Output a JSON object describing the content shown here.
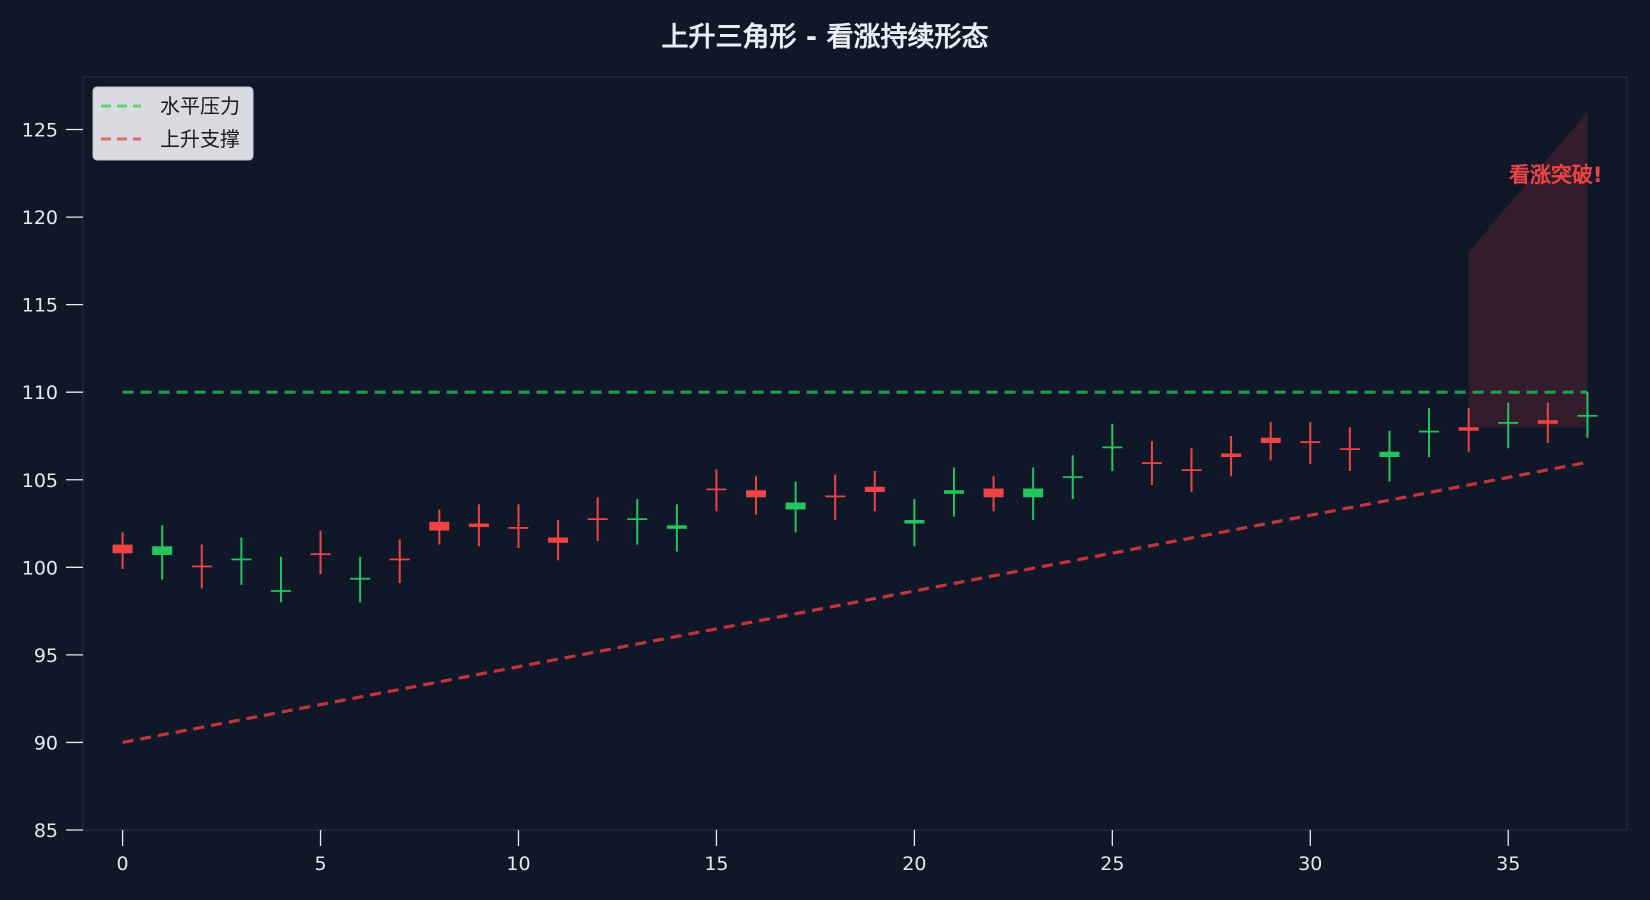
{
  "chart_data": {
    "type": "candlestick",
    "title": "上升三角形 - 看涨持续形态",
    "xlabel": "",
    "ylabel": "",
    "xlim": [
      -1,
      38
    ],
    "ylim": [
      85,
      128
    ],
    "x_ticks": [
      0,
      5,
      10,
      15,
      20,
      25,
      30,
      35
    ],
    "y_ticks": [
      85,
      90,
      95,
      100,
      105,
      110,
      115,
      120,
      125
    ],
    "grid": false,
    "legend": {
      "placement": "top-left",
      "entries": [
        {
          "label": "水平压力",
          "color": "#5fd47e"
        },
        {
          "label": "上升支撑",
          "color": "#e06a6a"
        }
      ]
    },
    "colors": {
      "background": "#0f1729",
      "up": "#22c55e",
      "down": "#ef4444",
      "resistance": "#1f9e4f",
      "support": "#c0343c",
      "breakout_zone": "#3a1e2e"
    },
    "resistance_line": {
      "name": "水平压力",
      "x": [
        0,
        37
      ],
      "y": [
        110,
        110
      ]
    },
    "support_line": {
      "name": "上升支撑",
      "x": [
        0,
        37
      ],
      "y": [
        90,
        106
      ]
    },
    "breakout_zone": {
      "x": [
        34,
        37
      ],
      "lower": [
        108,
        108
      ],
      "upper": [
        118,
        126
      ]
    },
    "annotation": {
      "text": "看涨突破!",
      "x": 36.2,
      "y": 122.4,
      "color": "#ef4444"
    },
    "candles": [
      {
        "x": 0,
        "open": 101.3,
        "close": 100.8,
        "high": 102.0,
        "low": 99.9
      },
      {
        "x": 1,
        "open": 100.7,
        "close": 101.2,
        "high": 102.4,
        "low": 99.3
      },
      {
        "x": 2,
        "open": 100.1,
        "close": 100.0,
        "high": 101.3,
        "low": 98.8
      },
      {
        "x": 3,
        "open": 100.4,
        "close": 100.5,
        "high": 101.7,
        "low": 99.0
      },
      {
        "x": 4,
        "open": 98.6,
        "close": 98.7,
        "high": 100.6,
        "low": 98.0
      },
      {
        "x": 5,
        "open": 100.8,
        "close": 100.7,
        "high": 102.1,
        "low": 99.6
      },
      {
        "x": 6,
        "open": 99.3,
        "close": 99.4,
        "high": 100.6,
        "low": 98.0
      },
      {
        "x": 7,
        "open": 100.5,
        "close": 100.4,
        "high": 101.6,
        "low": 99.1
      },
      {
        "x": 8,
        "open": 102.6,
        "close": 102.1,
        "high": 103.3,
        "low": 101.3
      },
      {
        "x": 9,
        "open": 102.5,
        "close": 102.3,
        "high": 103.6,
        "low": 101.2
      },
      {
        "x": 10,
        "open": 102.3,
        "close": 102.2,
        "high": 103.6,
        "low": 101.1
      },
      {
        "x": 11,
        "open": 101.7,
        "close": 101.4,
        "high": 102.7,
        "low": 100.4
      },
      {
        "x": 12,
        "open": 102.8,
        "close": 102.7,
        "high": 104.0,
        "low": 101.5
      },
      {
        "x": 13,
        "open": 102.7,
        "close": 102.8,
        "high": 103.9,
        "low": 101.3
      },
      {
        "x": 14,
        "open": 102.2,
        "close": 102.4,
        "high": 103.6,
        "low": 100.9
      },
      {
        "x": 15,
        "open": 104.5,
        "close": 104.4,
        "high": 105.6,
        "low": 103.2
      },
      {
        "x": 16,
        "open": 104.4,
        "close": 104.0,
        "high": 105.2,
        "low": 103.0
      },
      {
        "x": 17,
        "open": 103.3,
        "close": 103.7,
        "high": 104.9,
        "low": 102.0
      },
      {
        "x": 18,
        "open": 104.1,
        "close": 104.0,
        "high": 105.3,
        "low": 102.7
      },
      {
        "x": 19,
        "open": 104.6,
        "close": 104.3,
        "high": 105.5,
        "low": 103.2
      },
      {
        "x": 20,
        "open": 102.5,
        "close": 102.7,
        "high": 103.9,
        "low": 101.2
      },
      {
        "x": 21,
        "open": 104.2,
        "close": 104.4,
        "high": 105.7,
        "low": 102.9
      },
      {
        "x": 22,
        "open": 104.5,
        "close": 104.0,
        "high": 105.2,
        "low": 103.2
      },
      {
        "x": 23,
        "open": 104.0,
        "close": 104.5,
        "high": 105.7,
        "low": 102.7
      },
      {
        "x": 24,
        "open": 105.1,
        "close": 105.2,
        "high": 106.4,
        "low": 103.9
      },
      {
        "x": 25,
        "open": 106.8,
        "close": 106.9,
        "high": 108.2,
        "low": 105.5
      },
      {
        "x": 26,
        "open": 106.0,
        "close": 105.9,
        "high": 107.2,
        "low": 104.7
      },
      {
        "x": 27,
        "open": 105.6,
        "close": 105.5,
        "high": 106.8,
        "low": 104.3
      },
      {
        "x": 28,
        "open": 106.5,
        "close": 106.3,
        "high": 107.5,
        "low": 105.2
      },
      {
        "x": 29,
        "open": 107.4,
        "close": 107.1,
        "high": 108.3,
        "low": 106.1
      },
      {
        "x": 30,
        "open": 107.2,
        "close": 107.1,
        "high": 108.3,
        "low": 105.9
      },
      {
        "x": 31,
        "open": 106.8,
        "close": 106.7,
        "high": 108.0,
        "low": 105.5
      },
      {
        "x": 32,
        "open": 106.3,
        "close": 106.6,
        "high": 107.8,
        "low": 104.9
      },
      {
        "x": 33,
        "open": 107.7,
        "close": 107.8,
        "high": 109.1,
        "low": 106.3
      },
      {
        "x": 34,
        "open": 108.0,
        "close": 107.8,
        "high": 109.1,
        "low": 106.6
      },
      {
        "x": 35,
        "open": 108.2,
        "close": 108.3,
        "high": 109.4,
        "low": 106.8
      },
      {
        "x": 36,
        "open": 108.4,
        "close": 108.2,
        "high": 109.4,
        "low": 107.1
      },
      {
        "x": 37,
        "open": 108.6,
        "close": 108.7,
        "high": 110.0,
        "low": 107.4
      }
    ]
  }
}
